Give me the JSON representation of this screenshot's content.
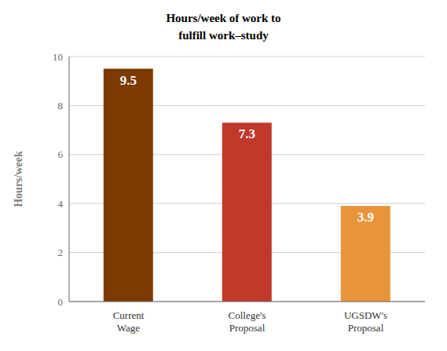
{
  "chart_data": {
    "type": "bar",
    "title": "Hours/week of work to\nfulfill work–study",
    "categories": [
      "Current\nWage",
      "College's\nProposal",
      "UGSDW's\nProposal"
    ],
    "values": [
      9.5,
      7.3,
      3.9
    ],
    "colors": [
      "#7B3A00",
      "#C0392B",
      "#E8943A"
    ],
    "ylabel": "Hours/week",
    "ylim": [
      0,
      10
    ],
    "yticks": [
      0,
      2,
      4,
      6,
      8,
      10
    ],
    "grid": true,
    "data_labels": true
  }
}
